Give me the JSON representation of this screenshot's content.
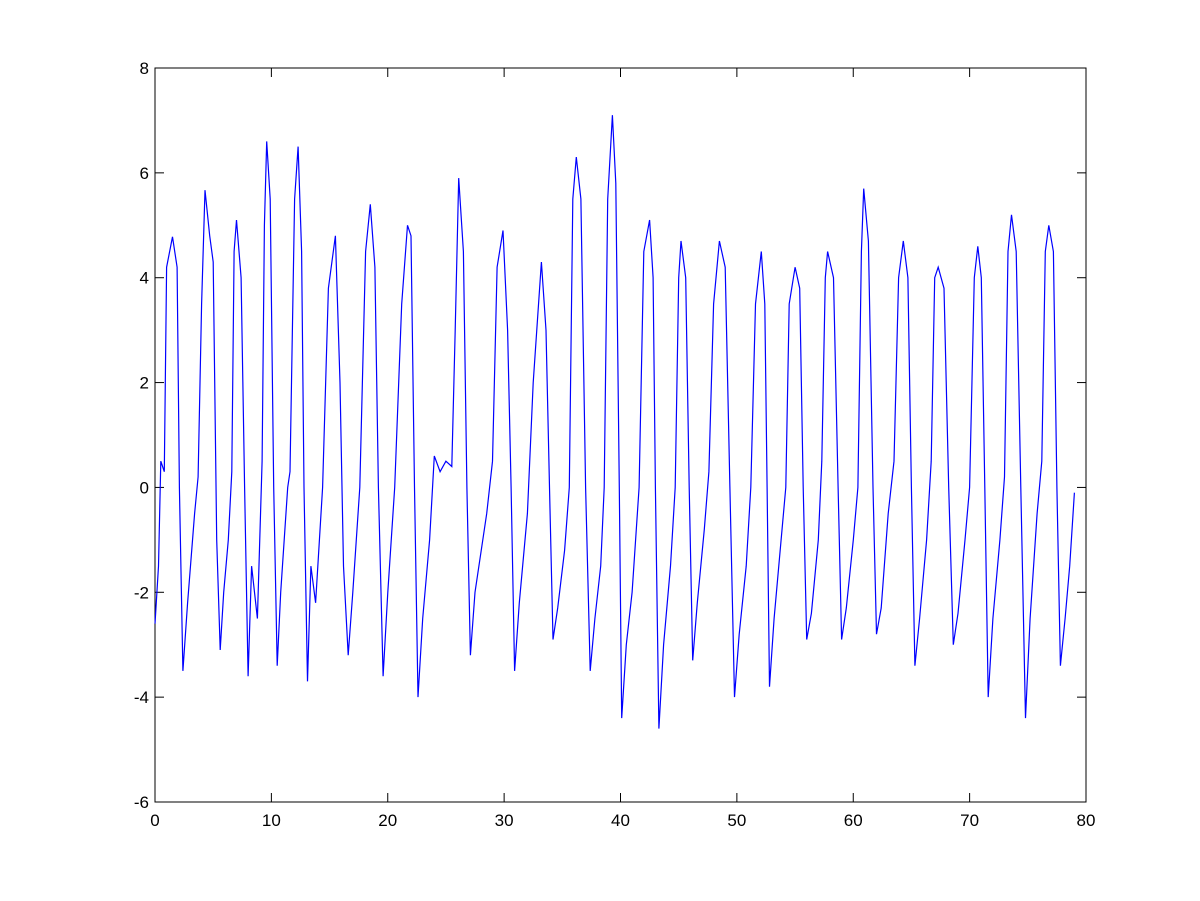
{
  "chart_data": {
    "type": "line",
    "title": "",
    "xlabel": "",
    "ylabel": "",
    "xlim": [
      0,
      80
    ],
    "ylim": [
      -6,
      8
    ],
    "xticks": [
      "0",
      "10",
      "20",
      "30",
      "40",
      "50",
      "60",
      "70",
      "80"
    ],
    "yticks": [
      "-6",
      "-4",
      "-2",
      "0",
      "2",
      "4",
      "6",
      "8"
    ],
    "grid": false,
    "legend": "none",
    "series": [
      {
        "color": "#0000ff",
        "points": [
          [
            0,
            -2.6
          ],
          [
            0.3,
            -1.5
          ],
          [
            0.5,
            0.5
          ],
          [
            0.8,
            0.3
          ],
          [
            1.0,
            4.2
          ],
          [
            1.5,
            4.78
          ],
          [
            1.9,
            4.2
          ],
          [
            2.1,
            0
          ],
          [
            2.4,
            -3.5
          ],
          [
            2.8,
            -2.2
          ],
          [
            3.4,
            -0.5
          ],
          [
            3.7,
            0.2
          ],
          [
            4.0,
            3.5
          ],
          [
            4.3,
            5.67
          ],
          [
            4.7,
            4.8
          ],
          [
            5.0,
            4.3
          ],
          [
            5.3,
            -1
          ],
          [
            5.6,
            -3.1
          ],
          [
            5.9,
            -2.0
          ],
          [
            6.3,
            -1.0
          ],
          [
            6.6,
            0.3
          ],
          [
            6.8,
            4.5
          ],
          [
            7.0,
            5.1
          ],
          [
            7.4,
            4.0
          ],
          [
            7.7,
            0
          ],
          [
            8.0,
            -3.6
          ],
          [
            8.3,
            -1.5
          ],
          [
            8.8,
            -2.5
          ],
          [
            9.2,
            0.5
          ],
          [
            9.4,
            5
          ],
          [
            9.6,
            6.6
          ],
          [
            9.9,
            5.5
          ],
          [
            10.2,
            0
          ],
          [
            10.5,
            -3.4
          ],
          [
            10.8,
            -2.0
          ],
          [
            11.4,
            0
          ],
          [
            11.6,
            0.3
          ],
          [
            12.0,
            5.5
          ],
          [
            12.3,
            6.5
          ],
          [
            12.6,
            4.5
          ],
          [
            12.8,
            0
          ],
          [
            13.1,
            -3.7
          ],
          [
            13.4,
            -1.5
          ],
          [
            13.8,
            -2.2
          ],
          [
            14.4,
            0
          ],
          [
            14.9,
            3.8
          ],
          [
            15.5,
            4.8
          ],
          [
            15.9,
            2.0
          ],
          [
            16.2,
            -1.5
          ],
          [
            16.6,
            -3.2
          ],
          [
            17.0,
            -2.0
          ],
          [
            17.6,
            0
          ],
          [
            18.1,
            4.5
          ],
          [
            18.5,
            5.4
          ],
          [
            18.9,
            4.2
          ],
          [
            19.2,
            0
          ],
          [
            19.6,
            -3.6
          ],
          [
            20.0,
            -2.0
          ],
          [
            20.6,
            0
          ],
          [
            21.2,
            3.5
          ],
          [
            21.7,
            5.0
          ],
          [
            22.0,
            4.8
          ],
          [
            22.3,
            0
          ],
          [
            22.6,
            -4.0
          ],
          [
            23.0,
            -2.5
          ],
          [
            23.6,
            -1.0
          ],
          [
            24.0,
            0.6
          ],
          [
            24.5,
            0.3
          ],
          [
            25.0,
            0.5
          ],
          [
            25.5,
            0.4
          ],
          [
            25.8,
            3.0
          ],
          [
            26.1,
            5.9
          ],
          [
            26.5,
            4.5
          ],
          [
            26.8,
            0
          ],
          [
            27.1,
            -3.2
          ],
          [
            27.5,
            -2.0
          ],
          [
            28.5,
            -0.5
          ],
          [
            29.0,
            0.5
          ],
          [
            29.4,
            4.2
          ],
          [
            29.9,
            4.9
          ],
          [
            30.3,
            3.0
          ],
          [
            30.6,
            0
          ],
          [
            30.9,
            -3.5
          ],
          [
            31.3,
            -2.2
          ],
          [
            32.0,
            -0.5
          ],
          [
            32.5,
            2.0
          ],
          [
            33.2,
            4.3
          ],
          [
            33.6,
            3.0
          ],
          [
            33.9,
            0
          ],
          [
            34.2,
            -2.9
          ],
          [
            34.6,
            -2.3
          ],
          [
            35.2,
            -1.2
          ],
          [
            35.6,
            0
          ],
          [
            35.9,
            5.5
          ],
          [
            36.2,
            6.3
          ],
          [
            36.6,
            5.5
          ],
          [
            37.0,
            0
          ],
          [
            37.4,
            -3.5
          ],
          [
            37.8,
            -2.5
          ],
          [
            38.3,
            -1.5
          ],
          [
            38.6,
            0
          ],
          [
            38.9,
            5.5
          ],
          [
            39.3,
            7.1
          ],
          [
            39.6,
            5.8
          ],
          [
            39.9,
            0
          ],
          [
            40.1,
            -4.4
          ],
          [
            40.5,
            -3
          ],
          [
            41.0,
            -2
          ],
          [
            41.6,
            0
          ],
          [
            42.0,
            4.5
          ],
          [
            42.5,
            5.1
          ],
          [
            42.8,
            4.0
          ],
          [
            43.0,
            0
          ],
          [
            43.3,
            -4.6
          ],
          [
            43.7,
            -3
          ],
          [
            44.3,
            -1.5
          ],
          [
            44.7,
            0
          ],
          [
            45.0,
            4.0
          ],
          [
            45.2,
            4.7
          ],
          [
            45.6,
            4.0
          ],
          [
            45.9,
            0
          ],
          [
            46.2,
            -3.3
          ],
          [
            46.6,
            -2.2
          ],
          [
            47.2,
            -0.8
          ],
          [
            47.6,
            0.3
          ],
          [
            48.0,
            3.5
          ],
          [
            48.5,
            4.7
          ],
          [
            49.0,
            4.2
          ],
          [
            49.4,
            0
          ],
          [
            49.8,
            -4.0
          ],
          [
            50.2,
            -2.8
          ],
          [
            50.8,
            -1.5
          ],
          [
            51.2,
            0
          ],
          [
            51.6,
            3.5
          ],
          [
            52.1,
            4.5
          ],
          [
            52.4,
            3.5
          ],
          [
            52.6,
            0
          ],
          [
            52.8,
            -3.8
          ],
          [
            53.2,
            -2.5
          ],
          [
            53.8,
            -1.0
          ],
          [
            54.2,
            0
          ],
          [
            54.5,
            3.5
          ],
          [
            55.0,
            4.2
          ],
          [
            55.4,
            3.8
          ],
          [
            55.7,
            0
          ],
          [
            56.0,
            -2.9
          ],
          [
            56.4,
            -2.4
          ],
          [
            57.0,
            -1.0
          ],
          [
            57.3,
            0.5
          ],
          [
            57.6,
            4.0
          ],
          [
            57.8,
            4.5
          ],
          [
            58.3,
            4.0
          ],
          [
            58.7,
            0
          ],
          [
            59.0,
            -2.9
          ],
          [
            59.4,
            -2.3
          ],
          [
            60.0,
            -1.0
          ],
          [
            60.4,
            0
          ],
          [
            60.7,
            4.5
          ],
          [
            60.9,
            5.7
          ],
          [
            61.3,
            4.7
          ],
          [
            61.7,
            0
          ],
          [
            62.0,
            -2.8
          ],
          [
            62.4,
            -2.3
          ],
          [
            63.0,
            -0.5
          ],
          [
            63.5,
            0.5
          ],
          [
            63.9,
            4.0
          ],
          [
            64.3,
            4.7
          ],
          [
            64.7,
            4.0
          ],
          [
            65.0,
            0
          ],
          [
            65.3,
            -3.4
          ],
          [
            65.7,
            -2.5
          ],
          [
            66.3,
            -1.0
          ],
          [
            66.7,
            0.5
          ],
          [
            67.0,
            4.0
          ],
          [
            67.3,
            4.2
          ],
          [
            67.8,
            3.8
          ],
          [
            68.2,
            0
          ],
          [
            68.6,
            -3.0
          ],
          [
            69.0,
            -2.4
          ],
          [
            69.6,
            -1.0
          ],
          [
            70.0,
            0
          ],
          [
            70.4,
            4.0
          ],
          [
            70.7,
            4.6
          ],
          [
            71.0,
            4.0
          ],
          [
            71.3,
            0
          ],
          [
            71.6,
            -4.0
          ],
          [
            72.0,
            -2.5
          ],
          [
            72.6,
            -1.0
          ],
          [
            73.0,
            0.2
          ],
          [
            73.3,
            4.5
          ],
          [
            73.6,
            5.2
          ],
          [
            74.0,
            4.5
          ],
          [
            74.4,
            0
          ],
          [
            74.8,
            -4.4
          ],
          [
            75.2,
            -2.5
          ],
          [
            75.8,
            -0.5
          ],
          [
            76.2,
            0.5
          ],
          [
            76.5,
            4.5
          ],
          [
            76.8,
            5.0
          ],
          [
            77.2,
            4.5
          ],
          [
            77.5,
            0
          ],
          [
            77.8,
            -3.4
          ],
          [
            78.2,
            -2.5
          ],
          [
            78.6,
            -1.5
          ],
          [
            79.0,
            -0.1
          ]
        ]
      }
    ]
  }
}
